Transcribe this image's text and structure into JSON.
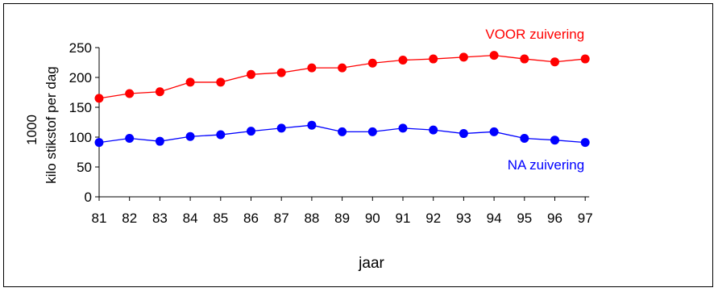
{
  "chart_data": {
    "type": "line",
    "title": "",
    "xlabel": "jaar",
    "ylabel_line1": "1000",
    "ylabel_line2": "kilo stikstof per dag",
    "ylim": [
      0,
      250
    ],
    "yticks": [
      0,
      50,
      100,
      150,
      200,
      250
    ],
    "categories": [
      "81",
      "82",
      "83",
      "84",
      "85",
      "86",
      "87",
      "88",
      "89",
      "90",
      "91",
      "92",
      "93",
      "94",
      "95",
      "96",
      "97"
    ],
    "grid": false,
    "legend": "inline labels next to series",
    "series": [
      {
        "name": "VOOR zuivering",
        "color": "#ff0000",
        "values": [
          165,
          173,
          176,
          192,
          192,
          205,
          208,
          216,
          216,
          224,
          229,
          231,
          234,
          237,
          231,
          226,
          231
        ]
      },
      {
        "name": "NA zuivering",
        "color": "#0000ff",
        "values": [
          91,
          98,
          93,
          101,
          104,
          110,
          115,
          120,
          109,
          109,
          115,
          112,
          106,
          109,
          98,
          95,
          91
        ]
      }
    ]
  }
}
